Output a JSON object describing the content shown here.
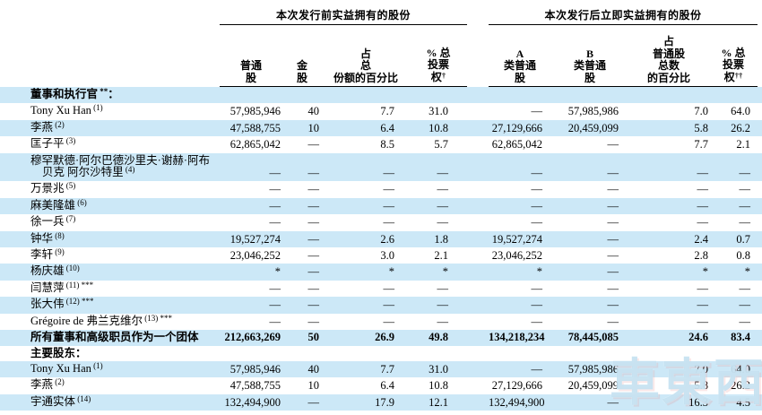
{
  "colors": {
    "stripe": "#cce8f7",
    "text": "#000000",
    "rule": "#000000",
    "watermark": "#9ecde8"
  },
  "watermark": {
    "text": "車東西"
  },
  "table": {
    "groups": [
      {
        "title": "本次发行前实益拥有的股份",
        "columns": [
          {
            "lines": [
              "普通",
              "股"
            ],
            "sup": ""
          },
          {
            "lines": [
              "金",
              "股"
            ],
            "sup": ""
          },
          {
            "lines": [
              "占",
              "总",
              "份额的百分比"
            ],
            "sup": ""
          },
          {
            "lines": [
              "% 总",
              "投票",
              "权"
            ],
            "sup": "†"
          }
        ]
      },
      {
        "title": "本次发行后立即实益拥有的股份",
        "columns": [
          {
            "lines": [
              "A",
              "类普通",
              "股"
            ],
            "sup": ""
          },
          {
            "lines": [
              "B",
              "类普通",
              "股"
            ],
            "sup": ""
          },
          {
            "lines": [
              "占",
              "普通股",
              "总数",
              "的百分比"
            ],
            "sup": ""
          },
          {
            "lines": [
              "% 总",
              "投票",
              "权"
            ],
            "sup": "††"
          }
        ]
      }
    ],
    "rows": [
      {
        "label": "董事和执行官",
        "sup": "**",
        "after": "：",
        "bold": true,
        "section": true,
        "values": null
      },
      {
        "label": "Tony Xu Han",
        "sup": "(1)",
        "values": [
          "57,985,946",
          "40",
          "7.7",
          "31.0",
          "—",
          "57,985,986",
          "7.0",
          "64.0"
        ]
      },
      {
        "label": "李燕",
        "sup": "(2)",
        "values": [
          "47,588,755",
          "10",
          "6.4",
          "10.8",
          "27,129,666",
          "20,459,099",
          "5.8",
          "26.2"
        ]
      },
      {
        "label": "匡子平",
        "sup": "(3)",
        "values": [
          "62,865,042",
          "—",
          "8.5",
          "5.7",
          "62,865,042",
          "—",
          "7.7",
          "2.1"
        ]
      },
      {
        "label": "穆罕默德·阿尔巴德沙里夫·谢赫·阿布贝克 阿尔沙特里",
        "sup": "(4)",
        "twoline": true,
        "values": [
          "—",
          "—",
          "—",
          "—",
          "—",
          "—",
          "—",
          "—"
        ]
      },
      {
        "label": "万景兆",
        "sup": "(5)",
        "values": [
          "—",
          "—",
          "—",
          "—",
          "—",
          "—",
          "—",
          "—"
        ]
      },
      {
        "label": "麻美隆雄",
        "sup": "(6)",
        "values": [
          "—",
          "—",
          "—",
          "—",
          "—",
          "—",
          "—",
          "—"
        ]
      },
      {
        "label": "徐一兵",
        "sup": "(7)",
        "values": [
          "—",
          "—",
          "—",
          "—",
          "—",
          "—",
          "—",
          "—"
        ]
      },
      {
        "label": "钟华",
        "sup": "(8)",
        "values": [
          "19,527,274",
          "—",
          "2.6",
          "1.8",
          "19,527,274",
          "—",
          "2.4",
          "0.7"
        ]
      },
      {
        "label": "李轩",
        "sup": "(9)",
        "values": [
          "23,046,252",
          "—",
          "3.0",
          "2.1",
          "23,046,252",
          "—",
          "2.8",
          "0.8"
        ]
      },
      {
        "label": "杨庆雄",
        "sup": "(10)",
        "values": [
          "*",
          "—",
          "*",
          "*",
          "*",
          "—",
          "*",
          "*"
        ]
      },
      {
        "label": "闫慧萍",
        "sup": "(11) ***",
        "values": [
          "—",
          "—",
          "—",
          "—",
          "—",
          "—",
          "—",
          "—"
        ]
      },
      {
        "label": "张大伟",
        "sup": "(12) ***",
        "values": [
          "—",
          "—",
          "—",
          "—",
          "—",
          "—",
          "—",
          "—"
        ]
      },
      {
        "label": "Grégoire de 弗兰克维尔",
        "sup": "(13) ***",
        "values": [
          "—",
          "—",
          "—",
          "—",
          "—",
          "—",
          "—",
          "—"
        ]
      },
      {
        "label": "所有董事和高级职员作为一个团体",
        "sup": "",
        "bold": true,
        "values": [
          "212,663,269",
          "50",
          "26.9",
          "49.8",
          "134,218,234",
          "78,445,085",
          "24.6",
          "83.4"
        ]
      },
      {
        "label": "主要股东",
        "sup": "",
        "after": "：",
        "bold": true,
        "section": true,
        "values": null
      },
      {
        "label": "Tony Xu Han",
        "sup": "(1)",
        "values": [
          "57,985,946",
          "40",
          "7.7",
          "31.0",
          "—",
          "57,985,986",
          "7.0",
          "64.0"
        ]
      },
      {
        "label": "李燕",
        "sup": "(2)",
        "values": [
          "47,588,755",
          "10",
          "6.4",
          "10.8",
          "27,129,666",
          "20,459,099",
          "5.8",
          "26.2"
        ]
      },
      {
        "label": "宇通实体",
        "sup": "(14)",
        "values": [
          "132,494,900",
          "—",
          "17.9",
          "12.1",
          "132,494,900",
          "—",
          "16.3",
          "4.5"
        ]
      }
    ]
  }
}
